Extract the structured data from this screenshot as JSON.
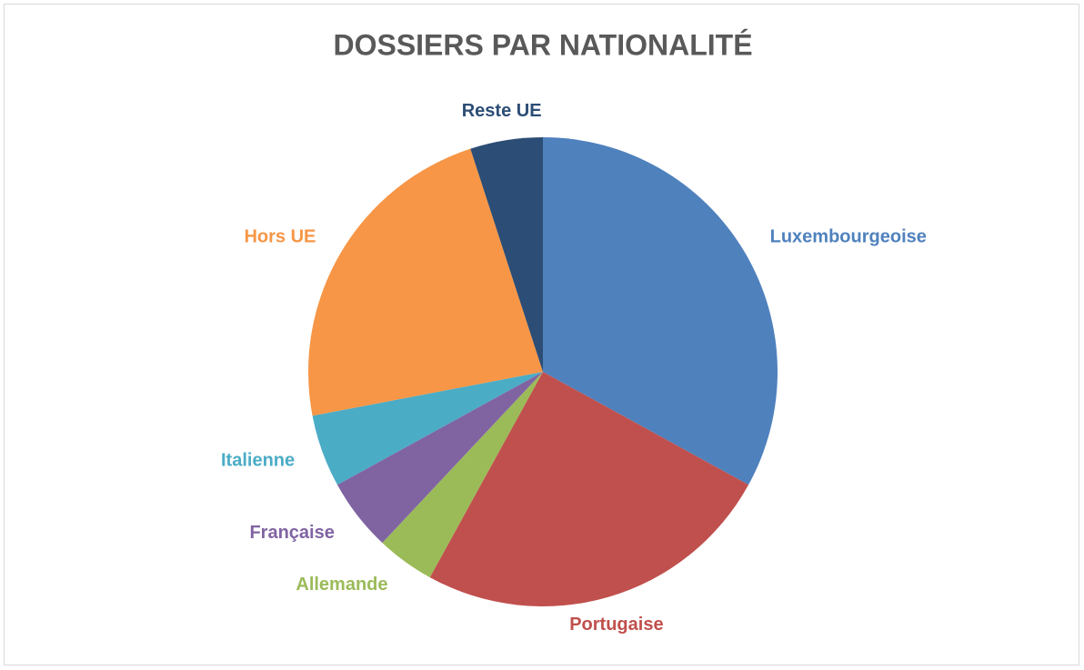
{
  "chart_data": {
    "type": "pie",
    "title": "DOSSIERS PAR NATIONALITÉ",
    "categories": [
      "Luxembourgeoise",
      "Portugaise",
      "Allemande",
      "Française",
      "Italienne",
      "Hors UE",
      "Reste UE"
    ],
    "values": [
      33,
      25,
      4,
      5,
      5,
      23,
      5
    ],
    "colors": [
      "#4f81bd",
      "#c0504d",
      "#9bbb59",
      "#8064a2",
      "#4bacc6",
      "#f79646",
      "#2c4d75"
    ]
  }
}
